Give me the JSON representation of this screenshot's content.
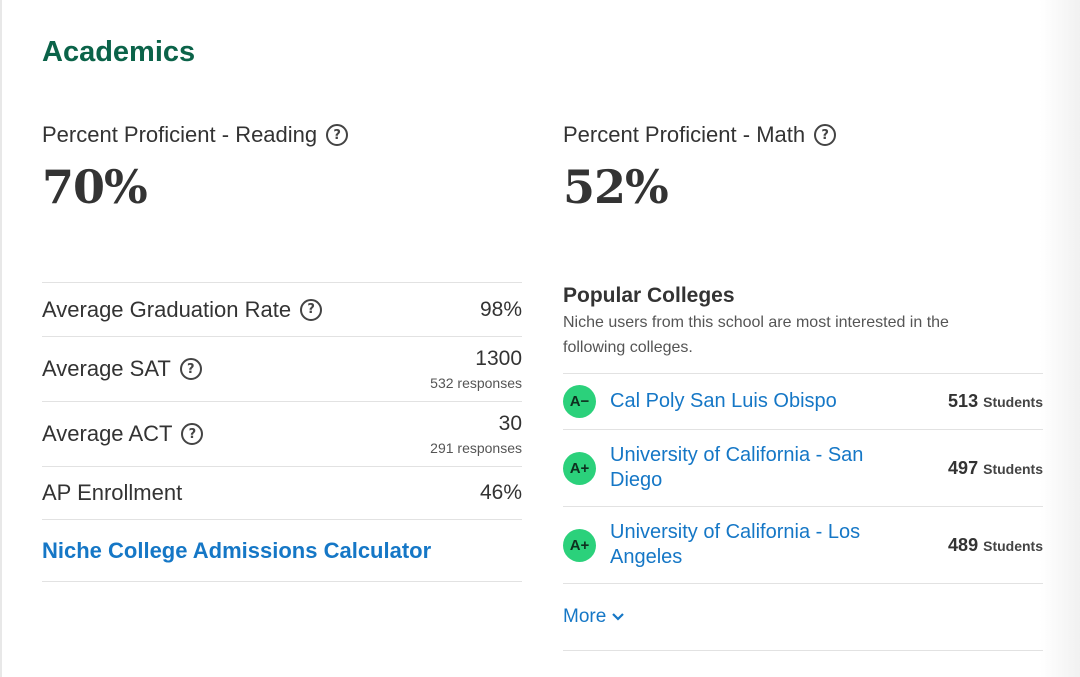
{
  "section": {
    "title": "Academics"
  },
  "stats": [
    {
      "label": "Percent Proficient - Reading",
      "value": "70%"
    },
    {
      "label": "Percent Proficient - Math",
      "value": "52%"
    }
  ],
  "metrics": [
    {
      "label": "Average Graduation Rate",
      "value": "98%",
      "has_help": true
    },
    {
      "label": "Average SAT",
      "value": "1300",
      "sub": "532 responses",
      "has_help": true
    },
    {
      "label": "Average ACT",
      "value": "30",
      "sub": "291 responses",
      "has_help": true
    },
    {
      "label": "AP Enrollment",
      "value": "46%",
      "has_help": false
    }
  ],
  "calculator_link": "Niche College Admissions Calculator",
  "help_glyph": "?",
  "popular": {
    "title": "Popular Colleges",
    "description": "Niche users from this school are most interested in the following colleges.",
    "colleges": [
      {
        "grade": "A−",
        "name": "Cal Poly San Luis Obispo",
        "count": "513",
        "unit": "Students"
      },
      {
        "grade": "A+",
        "name": "University of California - San Diego",
        "count": "497",
        "unit": "Students"
      },
      {
        "grade": "A+",
        "name": "University of California - Los Angeles",
        "count": "489",
        "unit": "Students"
      }
    ],
    "more_label": "More"
  },
  "colors": {
    "title_green": "#0b6349",
    "link_blue": "#1577c6",
    "grade_green": "#2bd17b"
  }
}
